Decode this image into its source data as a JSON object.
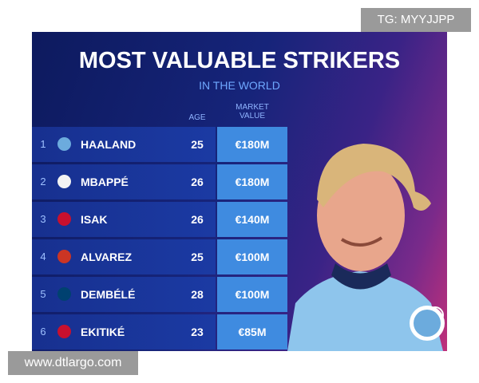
{
  "watermark_top": "TG: MYYJJPP",
  "title": "MOST VALUABLE STRIKERS",
  "subtitle": "IN THE WORLD",
  "table": {
    "columns": {
      "age": "AGE",
      "market_value": [
        "MARKET",
        "VALUE"
      ]
    },
    "rows": [
      [
        "1",
        "HAALAND",
        "25",
        "€180M"
      ],
      [
        "2",
        "MBAPPÉ",
        "26",
        "€180M"
      ],
      [
        "3",
        "ISAK",
        "26",
        "€140M"
      ],
      [
        "4",
        "ALVAREZ",
        "25",
        "€100M"
      ],
      [
        "5",
        "DEMBÉLÉ",
        "28",
        "€100M"
      ],
      [
        "6",
        "EKITIKÉ",
        "23",
        "€85M"
      ]
    ]
  },
  "watermark_bottom": "www.dtlargo.com"
}
